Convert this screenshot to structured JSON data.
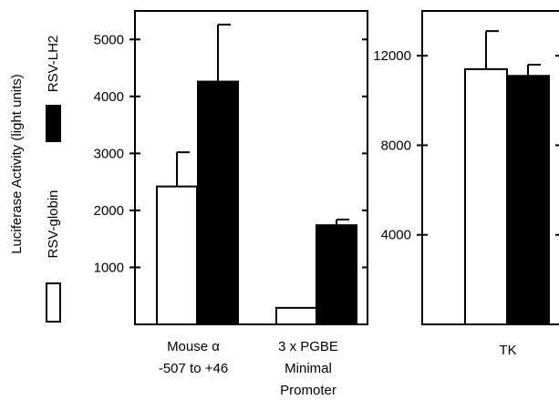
{
  "chart_data": [
    {
      "type": "bar",
      "ylabel": "Luciferase Activity (light units)",
      "ylim": [
        0,
        5500
      ],
      "yticks": [
        1000,
        2000,
        3000,
        4000,
        5000
      ],
      "categories": [
        [
          "Mouse α",
          "-507 to +46"
        ],
        [
          "3 x PGBE",
          "Minimal",
          "Promoter"
        ]
      ],
      "series": [
        {
          "name": "RSV-globin",
          "fill": "#ffffff",
          "values": [
            2420,
            290
          ],
          "errors": [
            600,
            0
          ]
        },
        {
          "name": "RSV-LH2",
          "fill": "#000000",
          "values": [
            4260,
            1740
          ],
          "errors": [
            1000,
            100
          ]
        }
      ],
      "legend": {
        "placement": "left, vertical"
      },
      "grid": false
    },
    {
      "type": "bar",
      "ylim": [
        0,
        14000
      ],
      "yticks": [
        4000,
        8000,
        12000
      ],
      "categories": [
        [
          "TK"
        ]
      ],
      "series": [
        {
          "name": "RSV-globin",
          "fill": "#ffffff",
          "values": [
            11400
          ],
          "errors": [
            1700
          ]
        },
        {
          "name": "RSV-LH2",
          "fill": "#000000",
          "values": [
            11100
          ],
          "errors": [
            500
          ]
        }
      ],
      "grid": false
    }
  ]
}
